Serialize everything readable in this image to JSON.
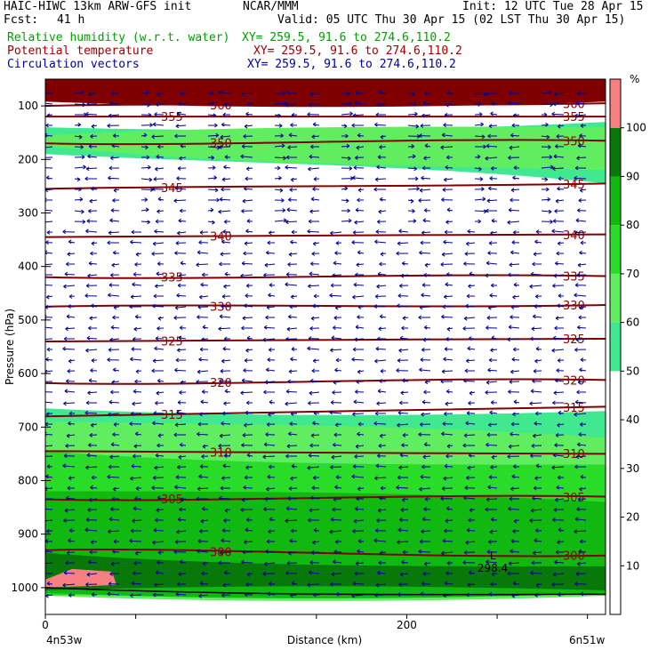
{
  "header": {
    "model": "HAIC-HIWC 13km ARW-GFS init",
    "center": "NCAR/MMM",
    "init": "Init: 12 UTC Tue 28 Apr 15",
    "fcst_label": "Fcst:",
    "fcst_value": "41 h",
    "valid": "Valid: 05 UTC Thu 30 Apr 15 (02 LST Thu 30 Apr 15)",
    "fields": [
      {
        "name": "Relative humidity (w.r.t. water)",
        "xy": "XY= 259.5, 91.6 to 274.6,110.2",
        "color": "#00a000"
      },
      {
        "name": "Potential temperature",
        "xy": "XY= 259.5, 91.6 to 274.6,110.2",
        "color": "#a00000"
      },
      {
        "name": "Circulation vectors",
        "xy": "XY= 259.5, 91.6 to 274.6,110.2",
        "color": "#0000a0"
      }
    ]
  },
  "chart_data": {
    "type": "heatmap",
    "title": "",
    "xlabel": "Distance (km)",
    "ylabel": "Pressure (hPa)",
    "x_ticks": [
      0,
      200
    ],
    "xlim": [
      0,
      310
    ],
    "y_ticks": [
      100,
      200,
      300,
      400,
      500,
      600,
      700,
      800,
      900,
      1000
    ],
    "ylim": [
      1050,
      50
    ],
    "left_endpoint_label": "4n53w",
    "right_endpoint_label": "6n51w",
    "colorbar": {
      "unit": "%",
      "ticks": [
        10,
        20,
        30,
        40,
        50,
        60,
        70,
        80,
        90,
        100
      ],
      "levels": [
        {
          "from": 50,
          "to": 60,
          "color": "#40e890"
        },
        {
          "from": 60,
          "to": 70,
          "color": "#60ee60"
        },
        {
          "from": 70,
          "to": 80,
          "color": "#28dc28"
        },
        {
          "from": 80,
          "to": 90,
          "color": "#10b810"
        },
        {
          "from": 90,
          "to": 100,
          "color": "#087808"
        },
        {
          "from": 100,
          "to": 110,
          "color": "#f88080"
        }
      ]
    },
    "rh_bands": [
      {
        "level": 110,
        "top_left": 50,
        "top_right": 50,
        "bot_left": 92,
        "bot_right": 92,
        "color": "#800000"
      },
      {
        "level": 50,
        "top_left": 140,
        "top_right": 130,
        "bot_left": 190,
        "bot_right": 245,
        "color": "#40e890"
      },
      {
        "level": 60,
        "top_left": 155,
        "top_right": 140,
        "bot_left": 175,
        "bot_right": 220,
        "color": "#60ee60"
      },
      {
        "level": 50,
        "top_left": 665,
        "top_right": 670,
        "bot_left": 1015,
        "bot_right": 1015,
        "color": "#40e890"
      },
      {
        "level": 60,
        "top_left": 690,
        "top_right": 720,
        "bot_left": 1015,
        "bot_right": 1015,
        "color": "#60ee60"
      },
      {
        "level": 70,
        "top_left": 745,
        "top_right": 770,
        "bot_left": 1015,
        "bot_right": 1015,
        "color": "#28dc28"
      },
      {
        "level": 80,
        "top_left": 820,
        "top_right": 840,
        "bot_left": 1010,
        "bot_right": 1010,
        "color": "#10b810"
      },
      {
        "level": 90,
        "top_left": 935,
        "top_right": 960,
        "bot_left": 1005,
        "bot_right": 1005,
        "color": "#087808"
      }
    ],
    "theta_contours": [
      {
        "label": "360",
        "p_left": 100,
        "p_right": 95,
        "color": "#800000"
      },
      {
        "label": "355",
        "p_left": 120,
        "p_right": 120,
        "color": "#800000"
      },
      {
        "label": "350",
        "p_left": 170,
        "p_right": 165,
        "color": "#800000"
      },
      {
        "label": "345",
        "p_left": 255,
        "p_right": 245,
        "color": "#800000"
      },
      {
        "label": "340",
        "p_left": 345,
        "p_right": 340,
        "color": "#800000"
      },
      {
        "label": "335",
        "p_left": 420,
        "p_right": 418,
        "color": "#800000"
      },
      {
        "label": "330",
        "p_left": 475,
        "p_right": 472,
        "color": "#800000"
      },
      {
        "label": "325",
        "p_left": 540,
        "p_right": 535,
        "color": "#800000"
      },
      {
        "label": "320",
        "p_left": 618,
        "p_right": 612,
        "color": "#800000"
      },
      {
        "label": "315",
        "p_left": 680,
        "p_right": 662,
        "color": "#800000"
      },
      {
        "label": "310",
        "p_left": 745,
        "p_right": 750,
        "color": "#800000"
      },
      {
        "label": "305",
        "p_left": 835,
        "p_right": 830,
        "color": "#800000"
      },
      {
        "label": "300",
        "p_left": 930,
        "p_right": 940,
        "color": "#800000"
      }
    ],
    "min_marker": {
      "label": "L",
      "value": "298.4",
      "x": 245,
      "p": 960
    },
    "vector_color": "#000090"
  }
}
